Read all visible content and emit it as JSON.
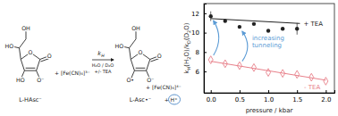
{
  "scheme": {
    "reactant": {
      "name": "L-HAsc⁻",
      "atoms": [
        "O",
        "O",
        "HO",
        "O⁻",
        "HO",
        "OH"
      ]
    },
    "oxidant": "+ [Fe(CN)₆]³⁻",
    "rate": [
      "k",
      "H"
    ],
    "conditions": [
      "H₂O / D₂O",
      "+/- TEA"
    ],
    "product": {
      "name": "L-Asc•⁻",
      "atoms": [
        "O",
        "O",
        "O•",
        "O⁻",
        "HO",
        "OH"
      ]
    },
    "byproduct": "+ [Fe(CN)₆]⁴⁻",
    "proton": "+ H⁺",
    "color": "#4a86c5"
  },
  "chart_data": {
    "type": "scatter",
    "x_label": "pressure / kbar",
    "y_label": [
      "k",
      "H",
      "(H",
      "2",
      "O)/k",
      "D",
      "(D",
      "2",
      "O)"
    ],
    "xlim": [
      -0.12,
      2.15
    ],
    "xticks": [
      {
        "value": 0,
        "label": "0.0"
      },
      {
        "value": 0.5,
        "label": "0.5"
      },
      {
        "value": 1,
        "label": "1.0"
      },
      {
        "value": 1.5,
        "label": "1.5"
      },
      {
        "value": 2,
        "label": "2.0"
      }
    ],
    "ylim": [
      3.8,
      13.0
    ],
    "yticks": [
      6,
      8,
      10,
      12
    ],
    "series": [
      {
        "name": "+ TEA",
        "color": "#222222",
        "marker": "circle",
        "x": [
          0,
          0.25,
          0.5,
          0.75,
          1.0,
          1.25,
          1.5
        ],
        "values": [
          11.7,
          11.2,
          10.6,
          10.9,
          10.2,
          10.4,
          10.4
        ],
        "errors": [
          0.5,
          null,
          null,
          null,
          null,
          null,
          0.6
        ]
      },
      {
        "type": "line",
        "color": "#222222",
        "line_style": "solid",
        "x": [
          0,
          1.55
        ],
        "values": [
          11.45,
          10.95
        ]
      },
      {
        "name": "- TEA",
        "color": "#e8808a",
        "marker": "diamond",
        "x": [
          0,
          0.25,
          0.5,
          0.75,
          1.0,
          1.25,
          1.5,
          1.75,
          2.0
        ],
        "values": [
          7.2,
          6.8,
          6.6,
          6.4,
          5.9,
          5.8,
          5.7,
          5.4,
          5.0
        ]
      },
      {
        "type": "line",
        "color": "#e8808a",
        "line_style": "solid",
        "x": [
          0,
          2.0
        ],
        "values": [
          7.05,
          5.1
        ]
      }
    ],
    "annotation": {
      "text": [
        "increasing",
        "tunneling"
      ],
      "color": "#5b9bd5"
    }
  }
}
